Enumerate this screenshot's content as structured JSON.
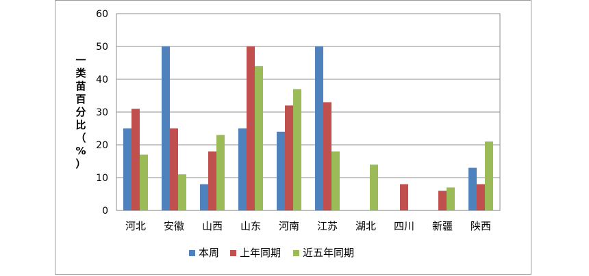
{
  "chart_data": {
    "type": "bar",
    "ylabel": "一类苗百分比（%）",
    "ylim": [
      0,
      60
    ],
    "yticks": [
      0,
      10,
      20,
      30,
      40,
      50,
      60
    ],
    "grid": true,
    "legend_position": "bottom",
    "categories": [
      "河北",
      "安徽",
      "山西",
      "山东",
      "河南",
      "江苏",
      "湖北",
      "四川",
      "新疆",
      "陕西"
    ],
    "series": [
      {
        "name": "本周",
        "color": "#4f81bd",
        "values": [
          25,
          50,
          8,
          25,
          24,
          50,
          0,
          0,
          0,
          13
        ]
      },
      {
        "name": "上年同期",
        "color": "#c0504d",
        "values": [
          31,
          25,
          18,
          50,
          32,
          33,
          0,
          8,
          6,
          8
        ]
      },
      {
        "name": "近五年同期",
        "color": "#9bbb59",
        "values": [
          17,
          11,
          23,
          44,
          37,
          18,
          14,
          0,
          7,
          21
        ]
      }
    ]
  }
}
